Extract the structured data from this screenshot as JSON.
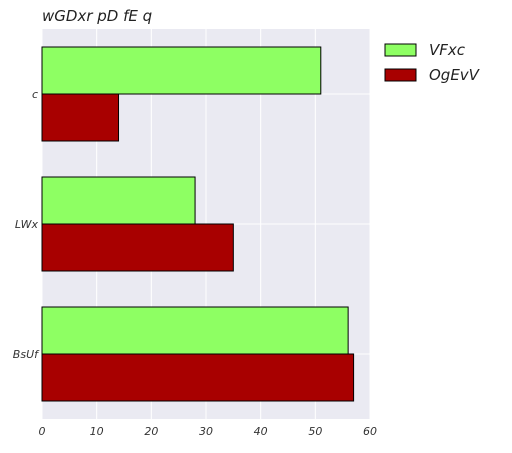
{
  "chart_data": {
    "type": "bar",
    "orientation": "horizontal",
    "title": "wGDxr pD  fE q",
    "xlabel": "",
    "ylabel": "",
    "categories": [
      "c",
      "LWx",
      "BsUf"
    ],
    "series": [
      {
        "name": "VFxc",
        "values": [
          51,
          28,
          56
        ],
        "color": "#8eff63"
      },
      {
        "name": "OgEvV",
        "values": [
          14,
          35,
          57
        ],
        "color": "#a80000"
      }
    ],
    "xlim": [
      0,
      60
    ],
    "xticks": [
      0,
      10,
      20,
      30,
      40,
      50,
      60
    ],
    "grid": true,
    "legend_position": "outside-right-top",
    "plot_background": "#eaeaf2",
    "grid_color": "#ffffff"
  }
}
